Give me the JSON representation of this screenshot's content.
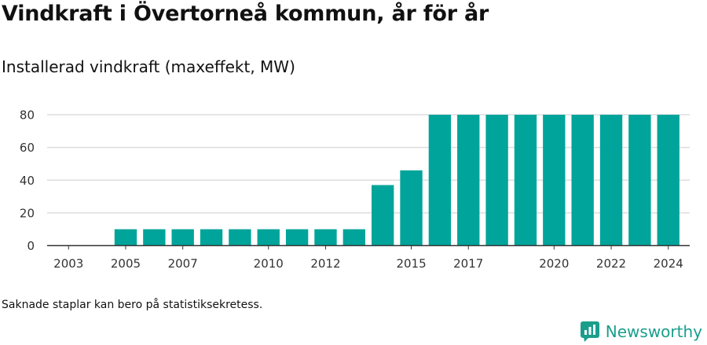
{
  "title": "Vindkraft i Övertorneå kommun, år för år",
  "subtitle": "Installerad vindkraft (maxeffekt, MW)",
  "footnote": "Saknade staplar kan bero på statistiksekretess.",
  "brand": {
    "name": "Newsworthy",
    "icon": "newsworthy-logo-icon",
    "color": "#1a9e8c"
  },
  "chart_data": {
    "type": "bar",
    "title": "Vindkraft i Övertorneå kommun, år för år",
    "subtitle": "Installerad vindkraft (maxeffekt, MW)",
    "bar_color": "#00a49a",
    "categories": [
      "2003",
      "2004",
      "2005",
      "2006",
      "2007",
      "2008",
      "2009",
      "2010",
      "2011",
      "2012",
      "2013",
      "2014",
      "2015",
      "2016",
      "2017",
      "2018",
      "2019",
      "2020",
      "2021",
      "2022",
      "2023",
      "2024"
    ],
    "values": [
      0,
      0,
      10,
      10,
      10,
      10,
      10,
      10,
      10,
      10,
      10,
      37,
      46,
      80,
      80,
      80,
      80,
      80,
      80,
      80,
      80,
      80
    ],
    "x_tick_labels": [
      "2003",
      "2005",
      "2007",
      "2010",
      "2012",
      "2015",
      "2017",
      "2020",
      "2022",
      "2024"
    ],
    "y_ticks": [
      0,
      20,
      40,
      60,
      80
    ],
    "ylim": [
      0,
      80
    ],
    "grid": true
  }
}
